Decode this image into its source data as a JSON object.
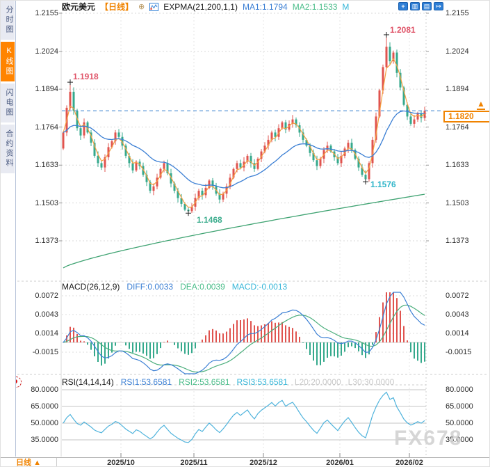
{
  "header": {
    "symbol": "欧元美元",
    "period_tag": "【日线】",
    "indicator": "EXPMA(21,200,1,1)",
    "ma1_label": "MA1:1.1794",
    "ma2_label": "MA2:1.1533",
    "ma3_label": "M"
  },
  "sidebar": {
    "tabs": [
      {
        "label": "分时图",
        "active": false
      },
      {
        "label": "K线图",
        "active": true
      },
      {
        "label": "闪电图",
        "active": false
      },
      {
        "label": "合约资料",
        "active": false
      }
    ]
  },
  "toolbar": {
    "icons": [
      "pan-icon",
      "scale-box-icon",
      "indicator-panel-icon",
      "close-panel-icon"
    ]
  },
  "main_chart": {
    "y_labels": [
      "1.2155",
      "1.2024",
      "1.1894",
      "1.1764",
      "1.1633",
      "1.1503",
      "1.1373"
    ],
    "annotations": {
      "h1": "1.1918",
      "h2": "1.2081",
      "l1": "1.1468",
      "l2": "1.1576"
    },
    "current_price": "1.1820"
  },
  "macd": {
    "title": "MACD(26,12,9)",
    "diff_label": "DIFF:0.0033",
    "dea_label": "DEA:0.0039",
    "macd_label": "MACD:-0.0013",
    "y_labels": [
      "0.0072",
      "0.0043",
      "0.0014",
      "-0.0015"
    ]
  },
  "rsi": {
    "title": "RSI(14,14,14)",
    "rsi1_label": "RSI1:53.6581",
    "rsi2_label": "RSI2:53.6581",
    "rsi3_label": "RSI3:53.6581",
    "l20_label": "L20:20.0000",
    "l30_label": "L30:30.0000",
    "y_labels": [
      "80.0000",
      "65.0000",
      "50.0000",
      "35.0000"
    ]
  },
  "x_axis": {
    "period_label": "日线 ▲",
    "dates": [
      "2025/10",
      "2025/11",
      "2025/12",
      "2026/01",
      "2026/02"
    ]
  },
  "watermark": "FX678",
  "chart_data": {
    "type": "candlestick",
    "symbol": "欧元美元 (EUR/USD)",
    "timeframe": "daily (日线)",
    "x_ticks": [
      "2025/10",
      "2025/11",
      "2025/12",
      "2026/01",
      "2026/02"
    ],
    "price_axis": [
      1.2155,
      1.2024,
      1.1894,
      1.1764,
      1.1633,
      1.1503,
      1.1373
    ],
    "open_first": 1.169,
    "closes": [
      1.1745,
      1.183,
      1.1885,
      1.182,
      1.176,
      1.1735,
      1.178,
      1.1745,
      1.171,
      1.1665,
      1.164,
      1.1625,
      1.166,
      1.1695,
      1.1715,
      1.1745,
      1.173,
      1.17,
      1.1665,
      1.164,
      1.1615,
      1.1645,
      1.163,
      1.16,
      1.1575,
      1.1545,
      1.156,
      1.159,
      1.162,
      1.164,
      1.1605,
      1.157,
      1.1545,
      1.152,
      1.15,
      1.148,
      1.1475,
      1.149,
      1.152,
      1.1545,
      1.153,
      1.1555,
      1.158,
      1.156,
      1.1535,
      1.1515,
      1.1535,
      1.156,
      1.159,
      1.162,
      1.164,
      1.1625,
      1.1645,
      1.1665,
      1.164,
      1.162,
      1.1655,
      1.168,
      1.17,
      1.172,
      1.1745,
      1.173,
      1.176,
      1.178,
      1.1755,
      1.1775,
      1.179,
      1.177,
      1.1745,
      1.172,
      1.17,
      1.1675,
      1.165,
      1.163,
      1.1655,
      1.1685,
      1.17,
      1.168,
      1.166,
      1.164,
      1.1665,
      1.169,
      1.171,
      1.1685,
      1.1655,
      1.1625,
      1.16,
      1.1585,
      1.164,
      1.172,
      1.18,
      1.189,
      1.197,
      1.204,
      1.199,
      1.202,
      1.195,
      1.19,
      1.184,
      1.18,
      1.1775,
      1.179,
      1.181,
      1.1795,
      1.182
    ],
    "key_candles": {
      "high1_idx": 2,
      "high1": 1.1918,
      "low1_idx": 36,
      "low1": 1.1468,
      "low2_idx": 87,
      "low2": 1.1576,
      "high2_idx": 93,
      "high2": 1.2081
    },
    "current_price": 1.182,
    "ma1_end": 1.1794,
    "ma2_path": {
      "start": 1.128,
      "end": 1.1533
    },
    "macd_values": {
      "diff": 0.0033,
      "dea": 0.0039,
      "macd": -0.0013,
      "axis": [
        0.0072,
        0.0043,
        0.0014,
        -0.0015
      ]
    },
    "rsi_values": {
      "rsi1": 53.6581,
      "rsi2": 53.6581,
      "rsi3": 53.6581,
      "axis": [
        80,
        65,
        50,
        35
      ]
    },
    "colors": {
      "up": "#e0544f",
      "down": "#35a98c",
      "ma1": "#3b7fd4",
      "ma2": "#3fa372",
      "ema_fast": "#f5a040",
      "macd_diff": "#3b7fd4",
      "macd_dea": "#4bae7c",
      "rsi_line": "#4fb3dc",
      "accent": "#f08300",
      "annotation_high": "#e0566a",
      "annotation_low": "#3fae8f",
      "annotation_low2": "#2fb5c9"
    }
  }
}
